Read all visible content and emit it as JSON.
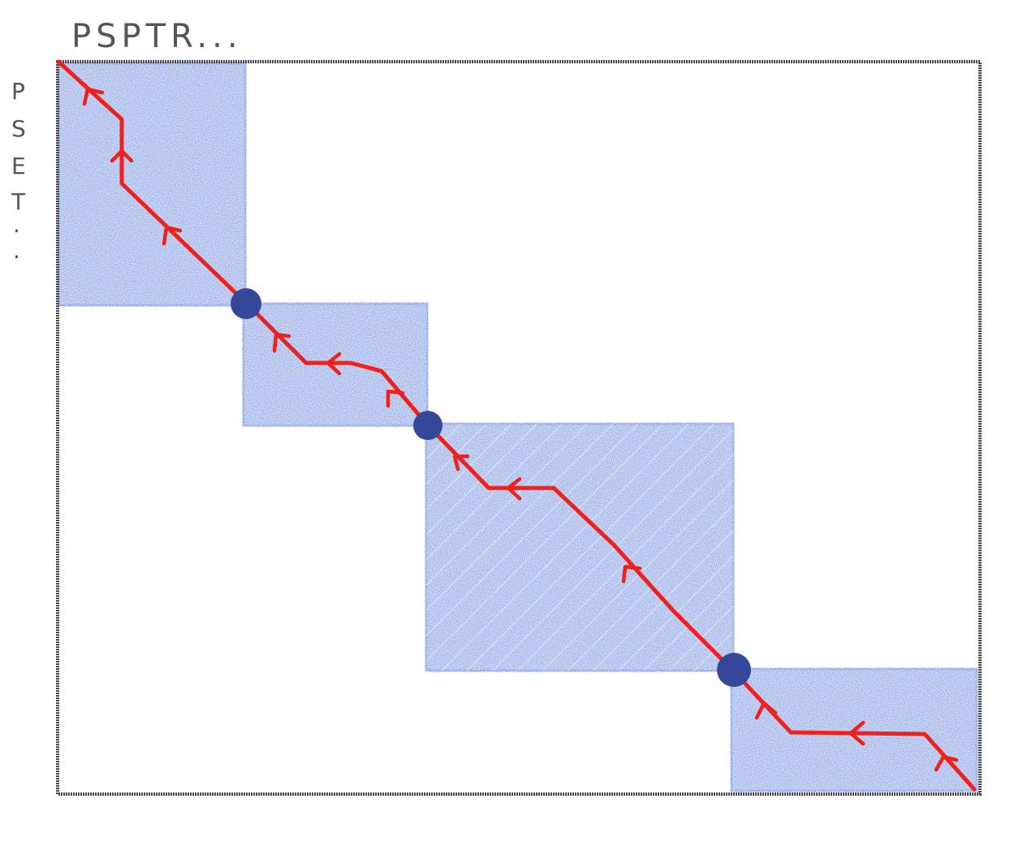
{
  "labels": {
    "top": "PSPTR...",
    "left_letters": [
      "P",
      "S",
      "E",
      "T",
      "."
    ]
  },
  "colors": {
    "frame": "#4a4a4a",
    "block_fill": "#8fa6e6",
    "block_edge": "#6f8ae0",
    "path": "#f0201a",
    "breakpoint": "#34479a"
  }
}
